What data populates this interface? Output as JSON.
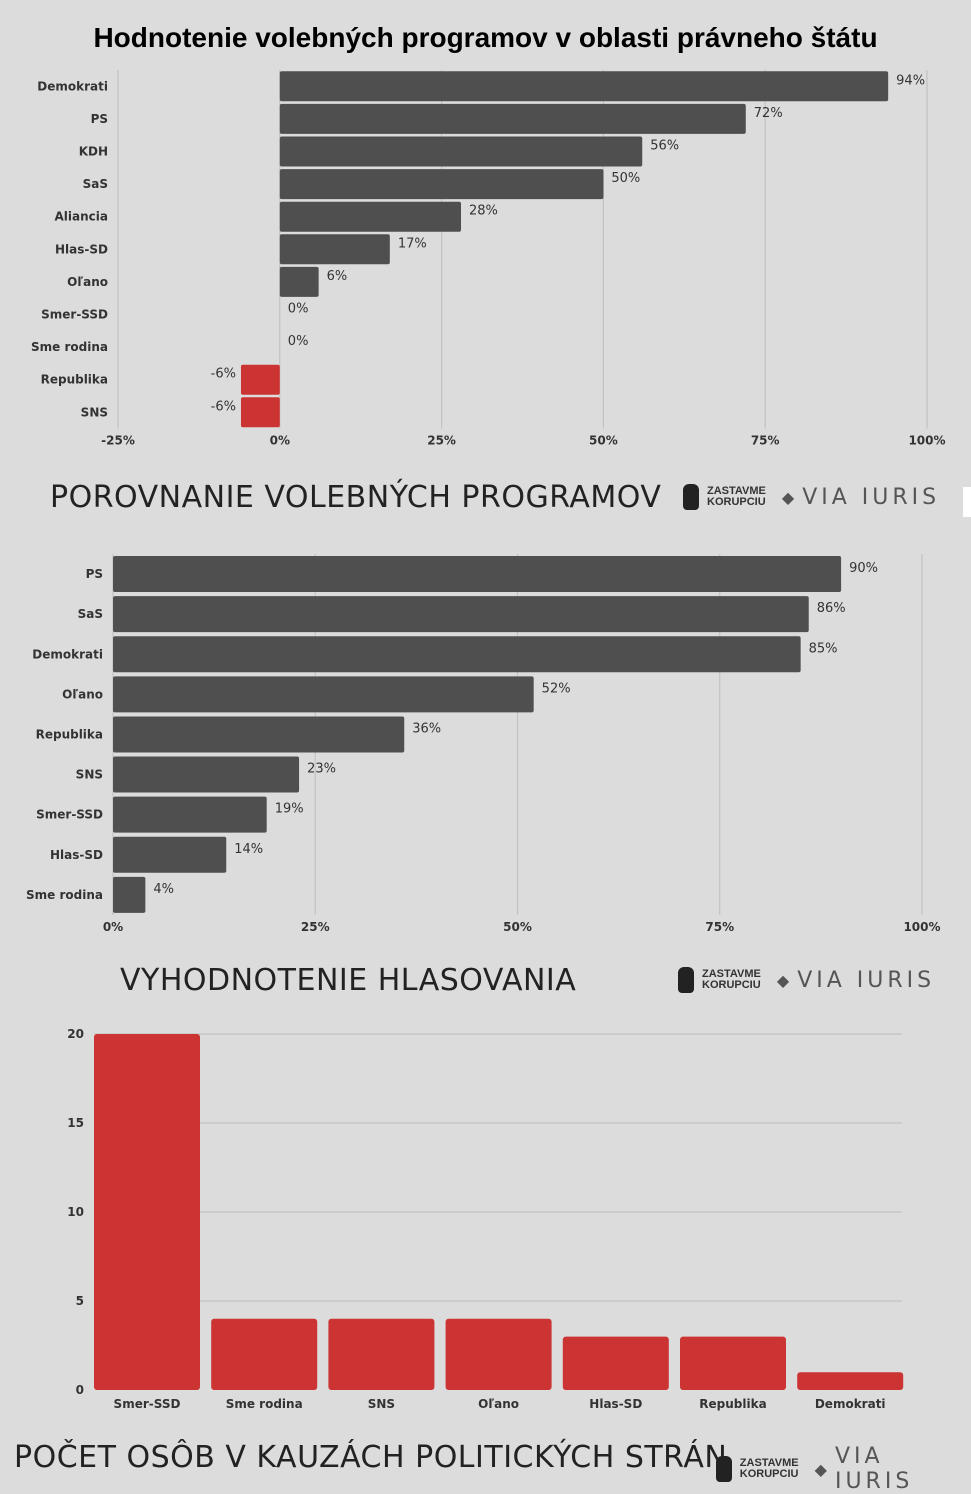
{
  "title": "Hodnotenie volebných programov v oblasti právneho štátu",
  "logo": {
    "zastavme_line1": "ZASTAVME",
    "zastavme_line2": "KORUPCIU",
    "via_iuris": "VIA IURIS",
    "icon": "hand-icon"
  },
  "colors": {
    "background": "#dcdcdc",
    "bar_dark": "#4f4f4f",
    "bar_red": "#cc3333",
    "grid": "#c2c2c2"
  },
  "chart_data": [
    {
      "type": "bar",
      "orientation": "horizontal",
      "caption": "POROVNANIE VOLEBNÝCH PROGRAMOV",
      "categories": [
        "Demokrati",
        "PS",
        "KDH",
        "SaS",
        "Aliancia",
        "Hlas-SD",
        "Oľano",
        "Smer-SSD",
        "Sme rodina",
        "Republika",
        "SNS"
      ],
      "values": [
        94,
        72,
        56,
        50,
        28,
        17,
        6,
        0,
        0,
        -6,
        -6
      ],
      "value_labels": [
        "94%",
        "72%",
        "56%",
        "50%",
        "28%",
        "17%",
        "6%",
        "0%",
        "0%",
        "-6%",
        "-6%"
      ],
      "xlim": [
        -25,
        100
      ],
      "ticks": [
        -25,
        0,
        25,
        50,
        75,
        100
      ],
      "tick_labels": [
        "-25%",
        "0%",
        "25%",
        "50%",
        "75%",
        "100%"
      ],
      "negative_color": "#cc3333",
      "grid": true
    },
    {
      "type": "bar",
      "orientation": "horizontal",
      "caption": "VYHODNOTENIE HLASOVANIA",
      "categories": [
        "PS",
        "SaS",
        "Demokrati",
        "Oľano",
        "Republika",
        "SNS",
        "Smer-SSD",
        "Hlas-SD",
        "Sme rodina"
      ],
      "values": [
        90,
        86,
        85,
        52,
        36,
        23,
        19,
        14,
        4
      ],
      "value_labels": [
        "90%",
        "86%",
        "85%",
        "52%",
        "36%",
        "23%",
        "19%",
        "14%",
        "4%"
      ],
      "xlim": [
        0,
        100
      ],
      "ticks": [
        0,
        25,
        50,
        75,
        100
      ],
      "tick_labels": [
        "0%",
        "25%",
        "50%",
        "75%",
        "100%"
      ],
      "grid": true
    },
    {
      "type": "bar",
      "orientation": "vertical",
      "caption": "POČET OSÔB V KAUZÁCH POLITICKÝCH STRÁN",
      "categories": [
        "Smer-SSD",
        "Sme rodina",
        "SNS",
        "Oľano",
        "Hlas-SD",
        "Republika",
        "Demokrati"
      ],
      "values": [
        20,
        4,
        4,
        4,
        3,
        3,
        1
      ],
      "ylim": [
        0,
        20
      ],
      "ticks": [
        0,
        5,
        10,
        15,
        20
      ],
      "tick_labels": [
        "0",
        "5",
        "10",
        "15",
        "20"
      ],
      "grid": true
    }
  ]
}
